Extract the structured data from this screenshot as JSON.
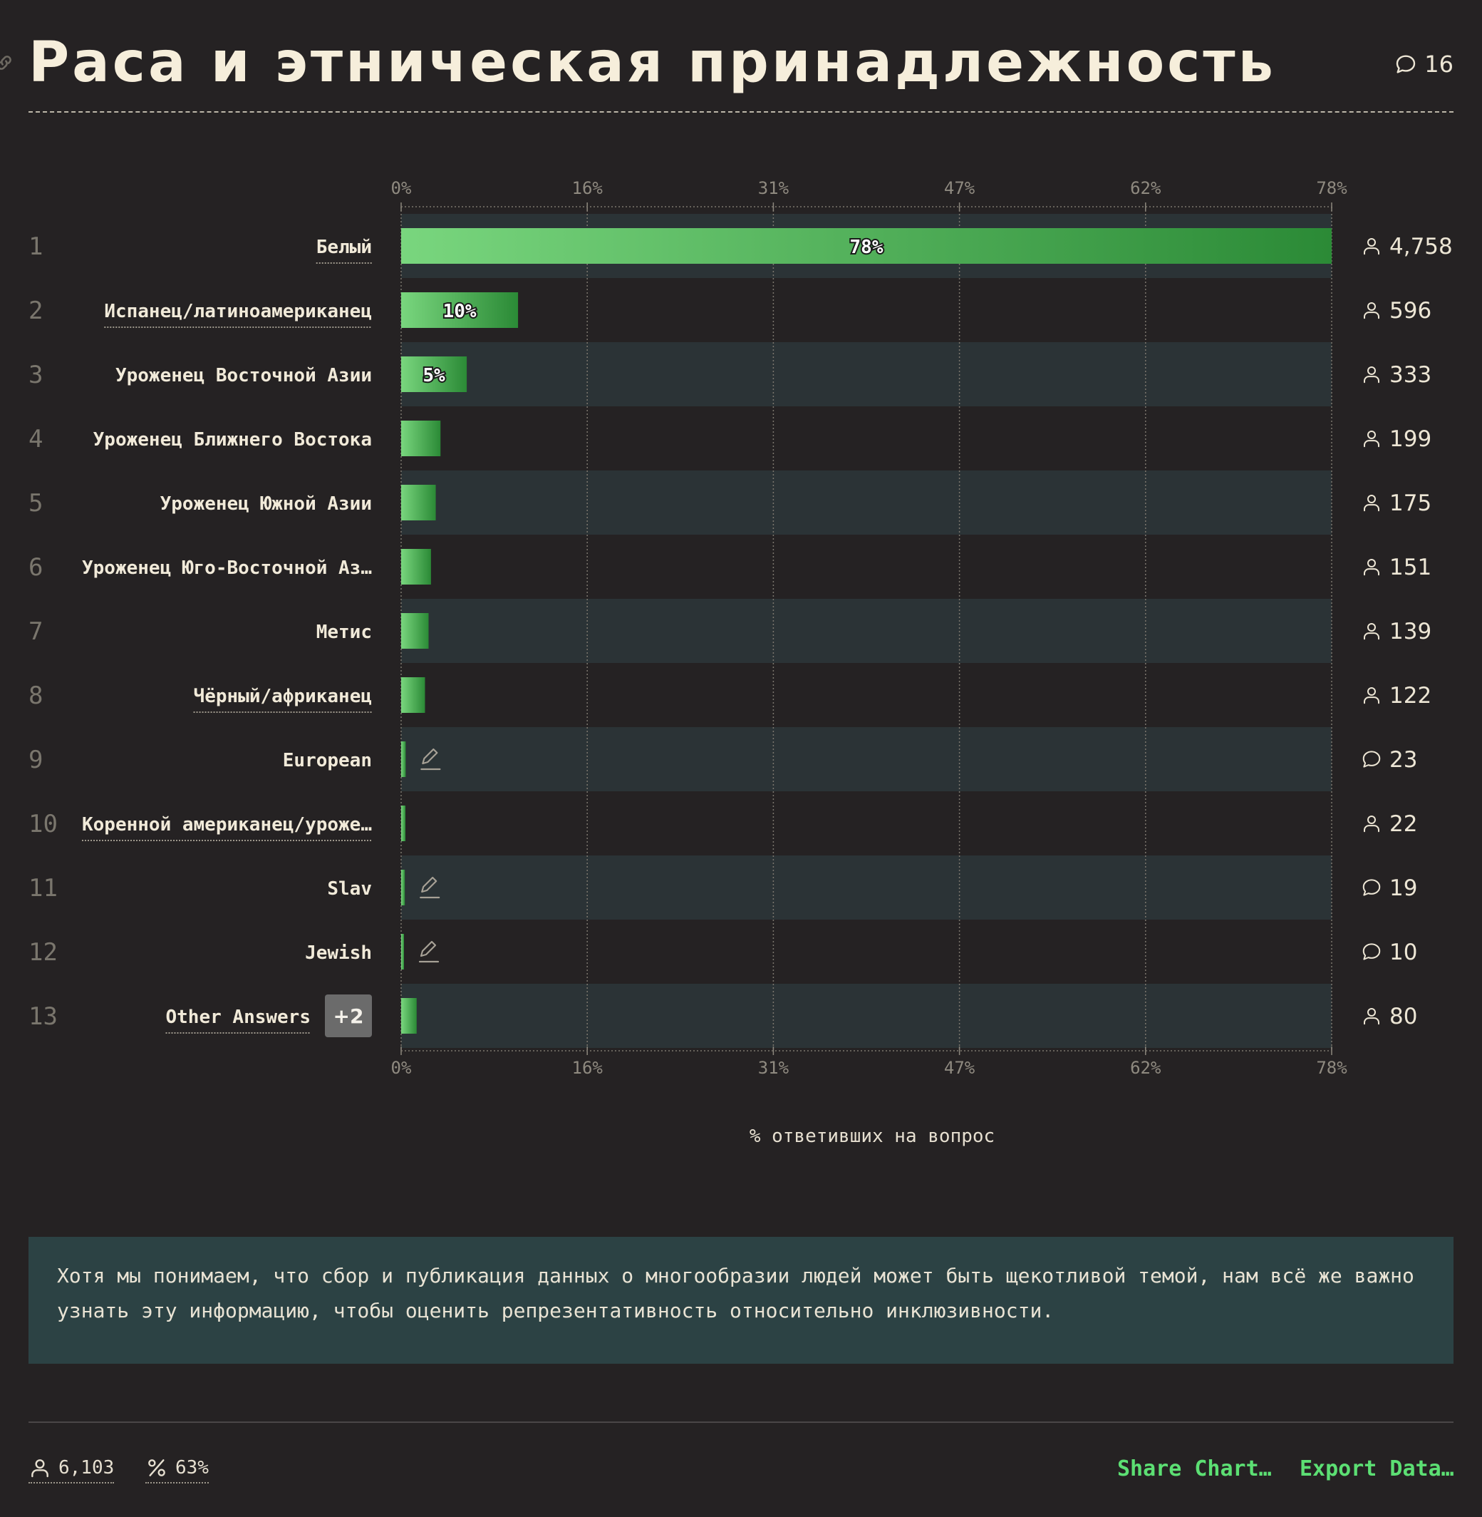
{
  "header": {
    "title": "Раса и этническая принадлежность",
    "comment_count": "16"
  },
  "chart_data": {
    "type": "bar",
    "orientation": "horizontal",
    "xlabel": "% ответивших на вопрос",
    "xlim": [
      0,
      78
    ],
    "x_ticks": [
      "0%",
      "16%",
      "31%",
      "47%",
      "62%",
      "78%"
    ],
    "grid": true,
    "bar_gradient": [
      "#79d67e",
      "#2b8a36"
    ],
    "row_band_color": "#2b3336",
    "categories": [
      "Белый",
      "Испанец/латиноамериканец",
      "Уроженец Восточной Азии",
      "Уроженец Ближнего Востока",
      "Уроженец Южной Азии",
      "Уроженец Юго-Восточной Аз…",
      "Метис",
      "Чёрный/африканец",
      "European",
      "Коренной американец/уроже…",
      "Slav",
      "Jewish",
      "Other Answers"
    ],
    "ranks": [
      "1",
      "2",
      "3",
      "4",
      "5",
      "6",
      "7",
      "8",
      "9",
      "10",
      "11",
      "12",
      "13"
    ],
    "values": [
      78,
      9.8,
      5.5,
      3.3,
      2.9,
      2.5,
      2.3,
      2.0,
      0.38,
      0.36,
      0.31,
      0.16,
      1.3
    ],
    "value_labels": [
      "78%",
      "10%",
      "5%",
      "",
      "",
      "",
      "",
      "",
      "",
      "",
      "",
      "",
      ""
    ],
    "counts": [
      "4,758",
      "596",
      "333",
      "199",
      "175",
      "151",
      "139",
      "122",
      "23",
      "22",
      "19",
      "10",
      "80"
    ],
    "count_icons": [
      "user-icon",
      "user-icon",
      "user-icon",
      "user-icon",
      "user-icon",
      "user-icon",
      "user-icon",
      "user-icon",
      "comment-icon",
      "user-icon",
      "comment-icon",
      "comment-icon",
      "user-icon"
    ],
    "underlined": [
      true,
      true,
      false,
      false,
      false,
      false,
      false,
      true,
      false,
      true,
      false,
      false,
      true
    ],
    "write_in": [
      false,
      false,
      false,
      false,
      false,
      false,
      false,
      false,
      true,
      false,
      true,
      true,
      false
    ],
    "other_badge": "+2"
  },
  "description": "Хотя мы понимаем, что сбор и публикация данных о многообразии людей может быть щекотливой темой, нам всё же важно узнать эту информацию, чтобы оценить репрезентативность относительно инклюзивности.",
  "footer": {
    "respondents": "6,103",
    "response_rate": "63%",
    "share_label": "Share Chart…",
    "export_label": "Export Data…"
  }
}
